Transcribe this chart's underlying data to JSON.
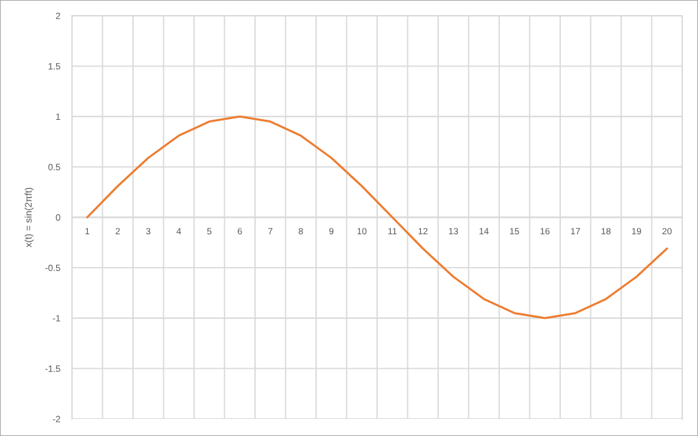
{
  "chart_data": {
    "type": "line",
    "ylabel": "x(t) = sin(2πft)",
    "categories": [
      "1",
      "2",
      "3",
      "4",
      "5",
      "6",
      "7",
      "8",
      "9",
      "10",
      "11",
      "12",
      "13",
      "14",
      "15",
      "16",
      "17",
      "18",
      "19",
      "20"
    ],
    "series": [
      {
        "color": "#ed7d31",
        "values": [
          0,
          0.31,
          0.59,
          0.81,
          0.95,
          1,
          0.95,
          0.81,
          0.59,
          0.31,
          0,
          -0.31,
          -0.59,
          -0.81,
          -0.95,
          -1,
          -0.95,
          -0.81,
          -0.59,
          -0.31
        ]
      }
    ],
    "ylim": [
      -2,
      2
    ],
    "yticks": [
      -2,
      -1.5,
      -1,
      -0.5,
      0,
      0.5,
      1,
      1.5,
      2
    ],
    "grid": true
  }
}
